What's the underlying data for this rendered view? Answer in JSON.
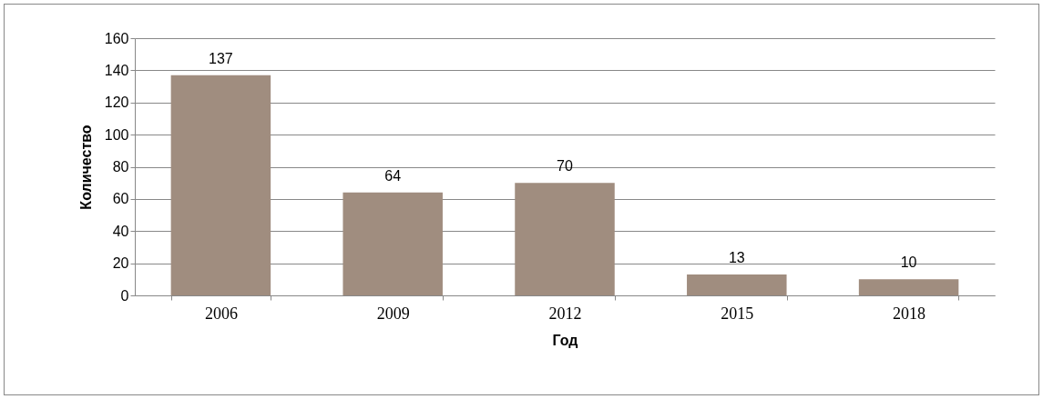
{
  "chart_data": {
    "type": "bar",
    "xlabel": "Год",
    "ylabel": "Количество",
    "categories": [
      "2006",
      "2009",
      "2012",
      "2015",
      "2018"
    ],
    "values": [
      137,
      64,
      70,
      13,
      10
    ],
    "color": "#a08d7f",
    "ylim": [
      0,
      160
    ],
    "yticks": [
      0,
      20,
      40,
      60,
      80,
      100,
      120,
      140,
      160
    ],
    "grid": "y",
    "data_labels": true
  }
}
